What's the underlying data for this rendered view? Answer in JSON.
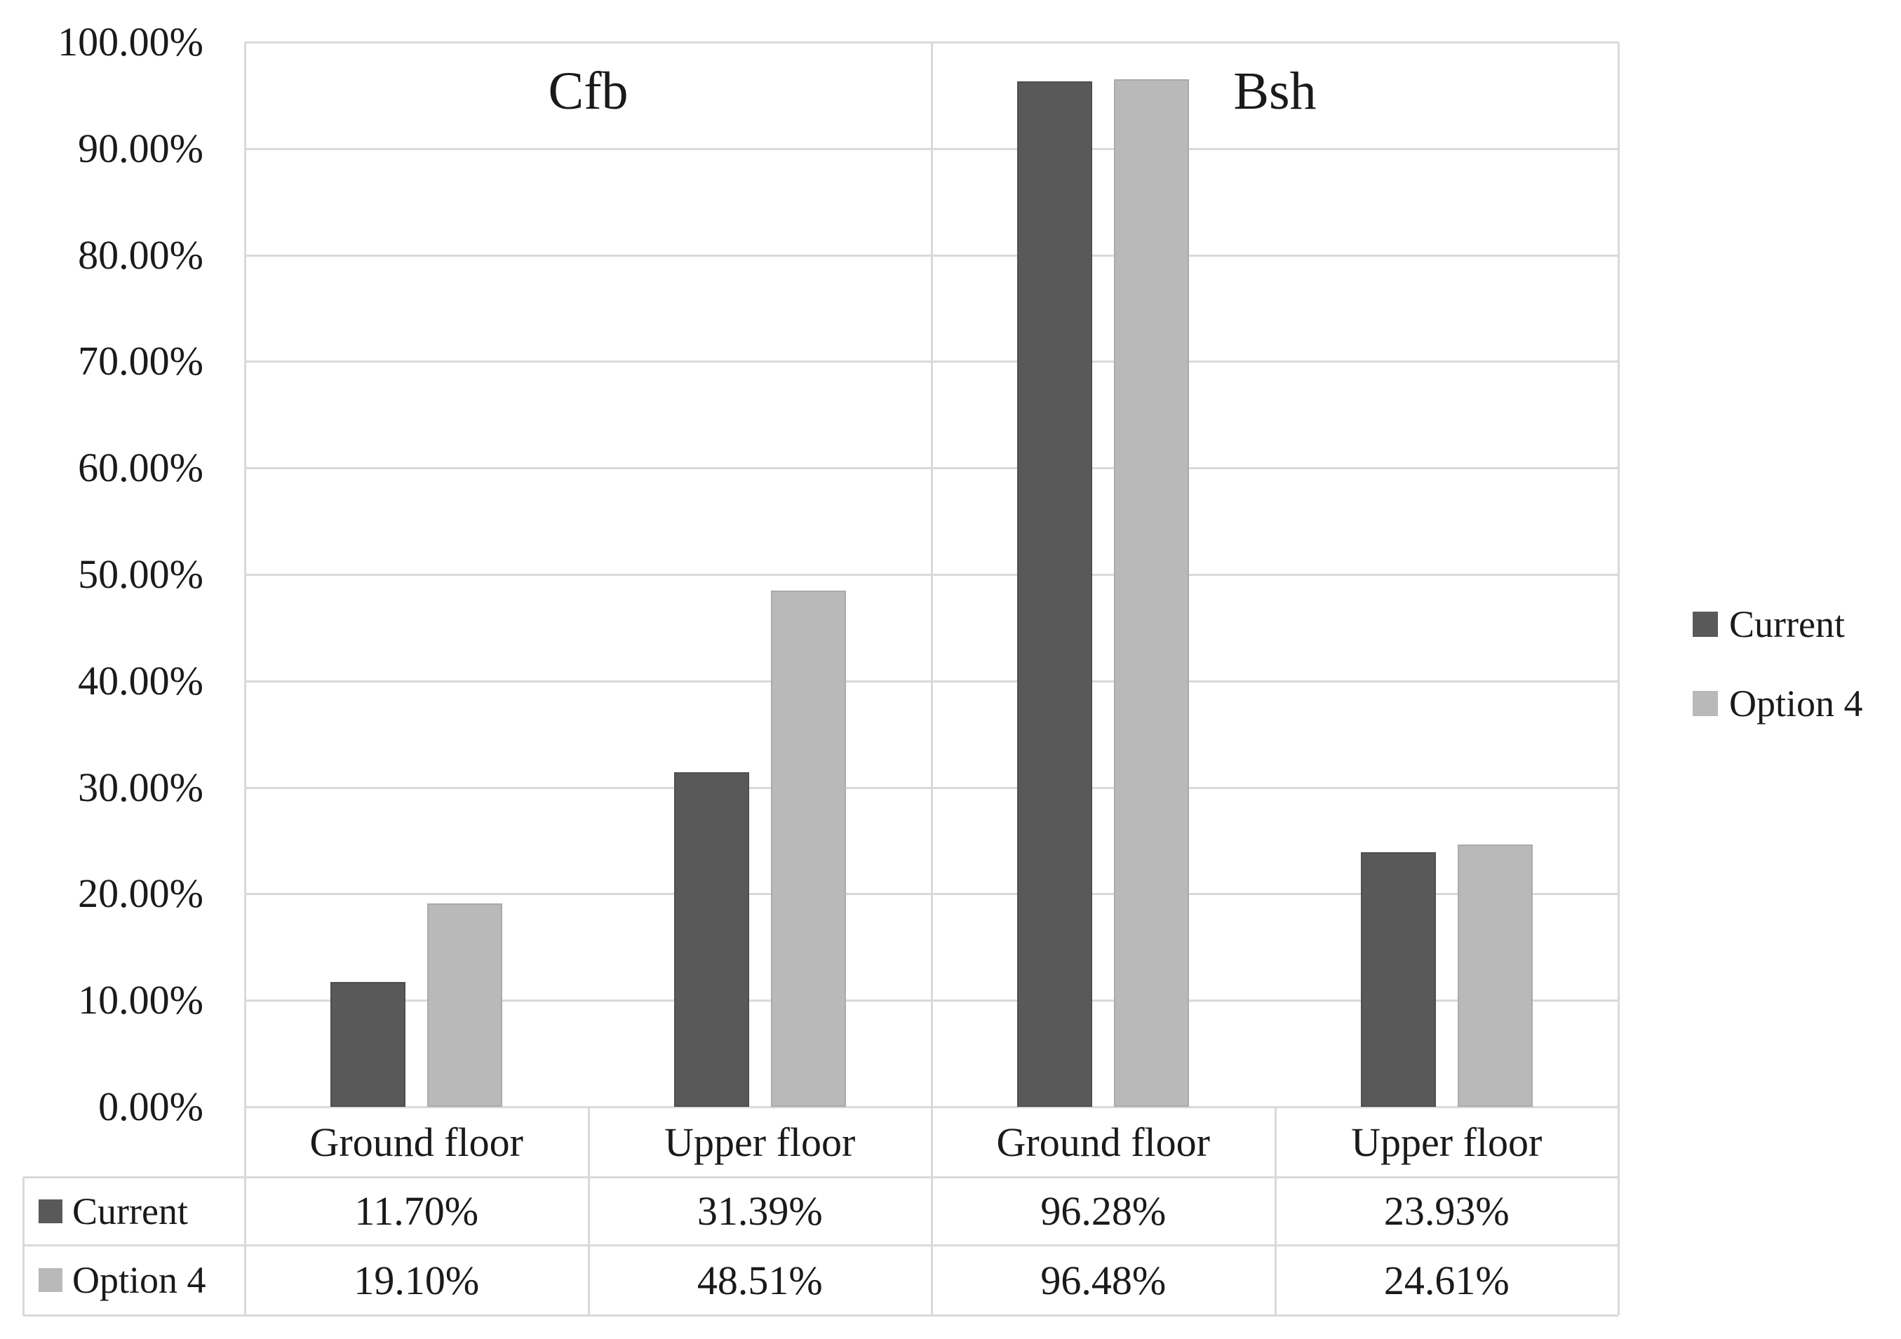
{
  "figure": {
    "background": "#ffffff",
    "border_color": "#d9d9d9",
    "text_color": "#1a1a1a"
  },
  "chart_data": {
    "type": "bar",
    "title": "",
    "xlabel": "",
    "ylabel": "",
    "grid": true,
    "legend_position": "right",
    "data_table_shown": true,
    "group_labels": [
      "Cfb",
      "Bsh"
    ],
    "categories": [
      "Ground floor",
      "Upper floor",
      "Ground floor",
      "Upper floor"
    ],
    "category_group_index": [
      0,
      0,
      1,
      1
    ],
    "series": [
      {
        "name": "Current",
        "color": "#595959",
        "values": [
          11.7,
          31.39,
          96.28,
          23.93
        ],
        "value_labels": [
          "11.70%",
          "31.39%",
          "96.28%",
          "23.93%"
        ]
      },
      {
        "name": "Option 4",
        "color": "#b9b9b9",
        "values": [
          19.1,
          48.51,
          96.48,
          24.61
        ],
        "value_labels": [
          "19.10%",
          "48.51%",
          "96.48%",
          "24.61%"
        ]
      }
    ],
    "y_axis": {
      "min": 0,
      "max": 100,
      "step": 10,
      "tick_labels": [
        "100.00%",
        "90.00%",
        "80.00%",
        "70.00%",
        "60.00%",
        "50.00%",
        "40.00%",
        "30.00%",
        "20.00%",
        "10.00%",
        "0.00%"
      ]
    }
  },
  "legend": {
    "entries": [
      {
        "label": "Current",
        "color": "#595959"
      },
      {
        "label": "Option 4",
        "color": "#b9b9b9"
      }
    ]
  }
}
